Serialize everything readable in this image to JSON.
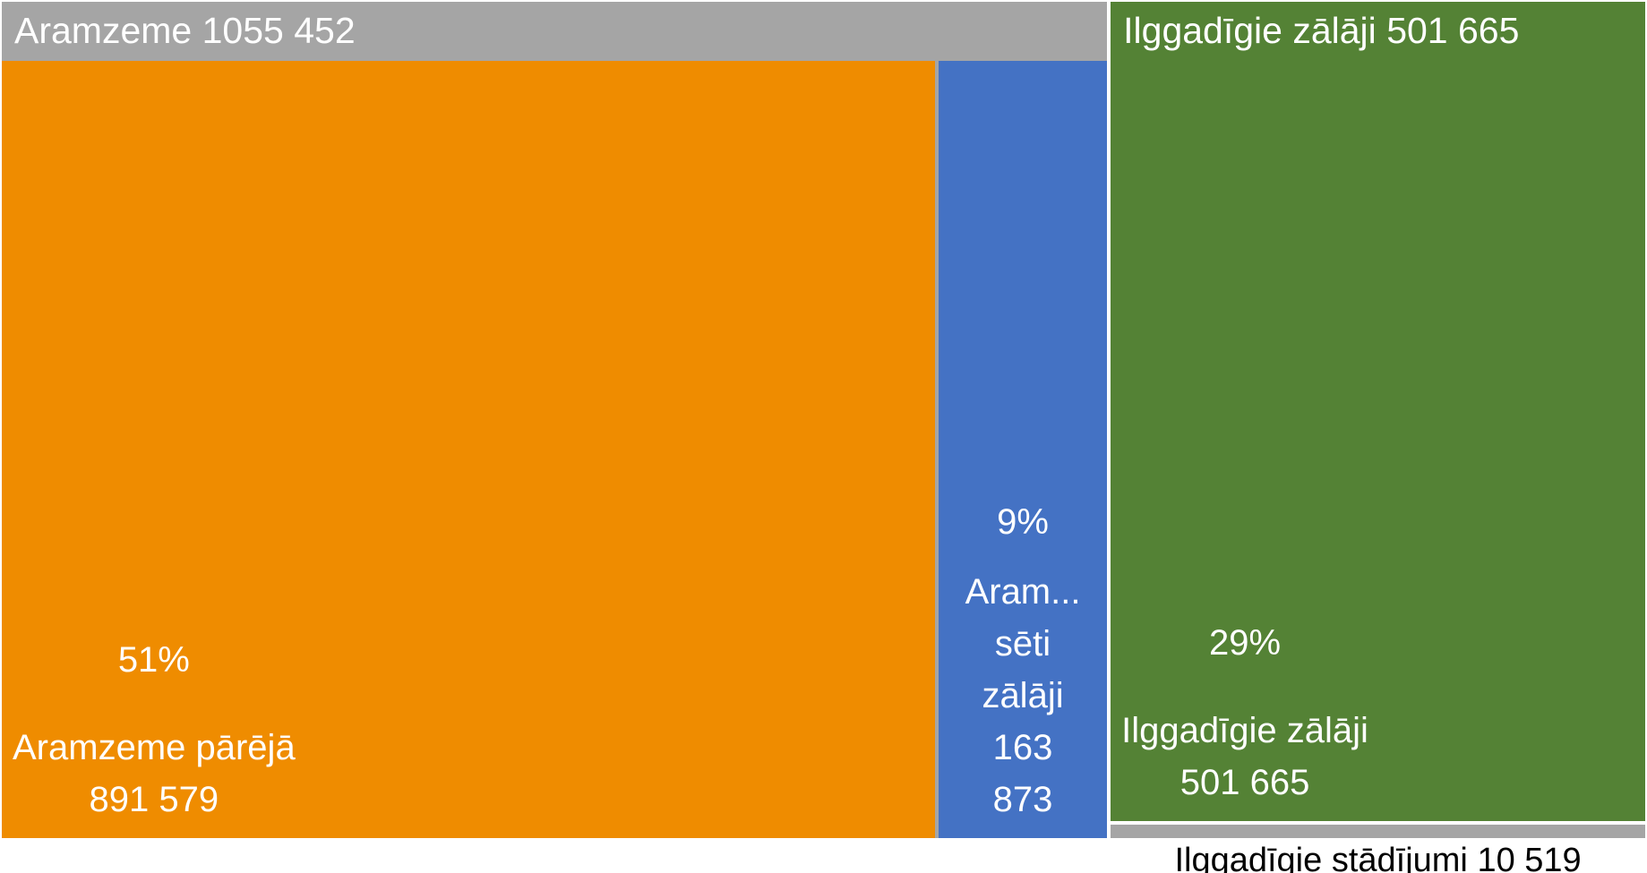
{
  "chart_data": {
    "type": "treemap",
    "groups": [
      {
        "name": "Aramzeme",
        "value": 1055452,
        "value_label": "1055 452",
        "color": "#a5a5a5",
        "children": [
          {
            "name": "Aramzeme pārējā",
            "value": 891579,
            "value_label": "891 579",
            "percent": 51,
            "percent_label": "51%",
            "color": "#ef8c00"
          },
          {
            "name": "Aram... sēti zālāji",
            "value": 163873,
            "value_label": "163 873",
            "percent": 9,
            "percent_label": "9%",
            "color": "#4472c4"
          }
        ]
      },
      {
        "name": "Ilggadīgie zālāji",
        "value": 501665,
        "value_label": "501 665",
        "color": "#548235",
        "children": [
          {
            "name": "Ilggadīgie zālāji",
            "value": 501665,
            "value_label": "501 665",
            "percent": 29,
            "percent_label": "29%",
            "color": "#548235"
          }
        ]
      },
      {
        "name": "Ilggadīgie stādījumi",
        "value": 10519,
        "value_label": "10 519",
        "color": "#a5a5a5",
        "children": []
      }
    ]
  }
}
